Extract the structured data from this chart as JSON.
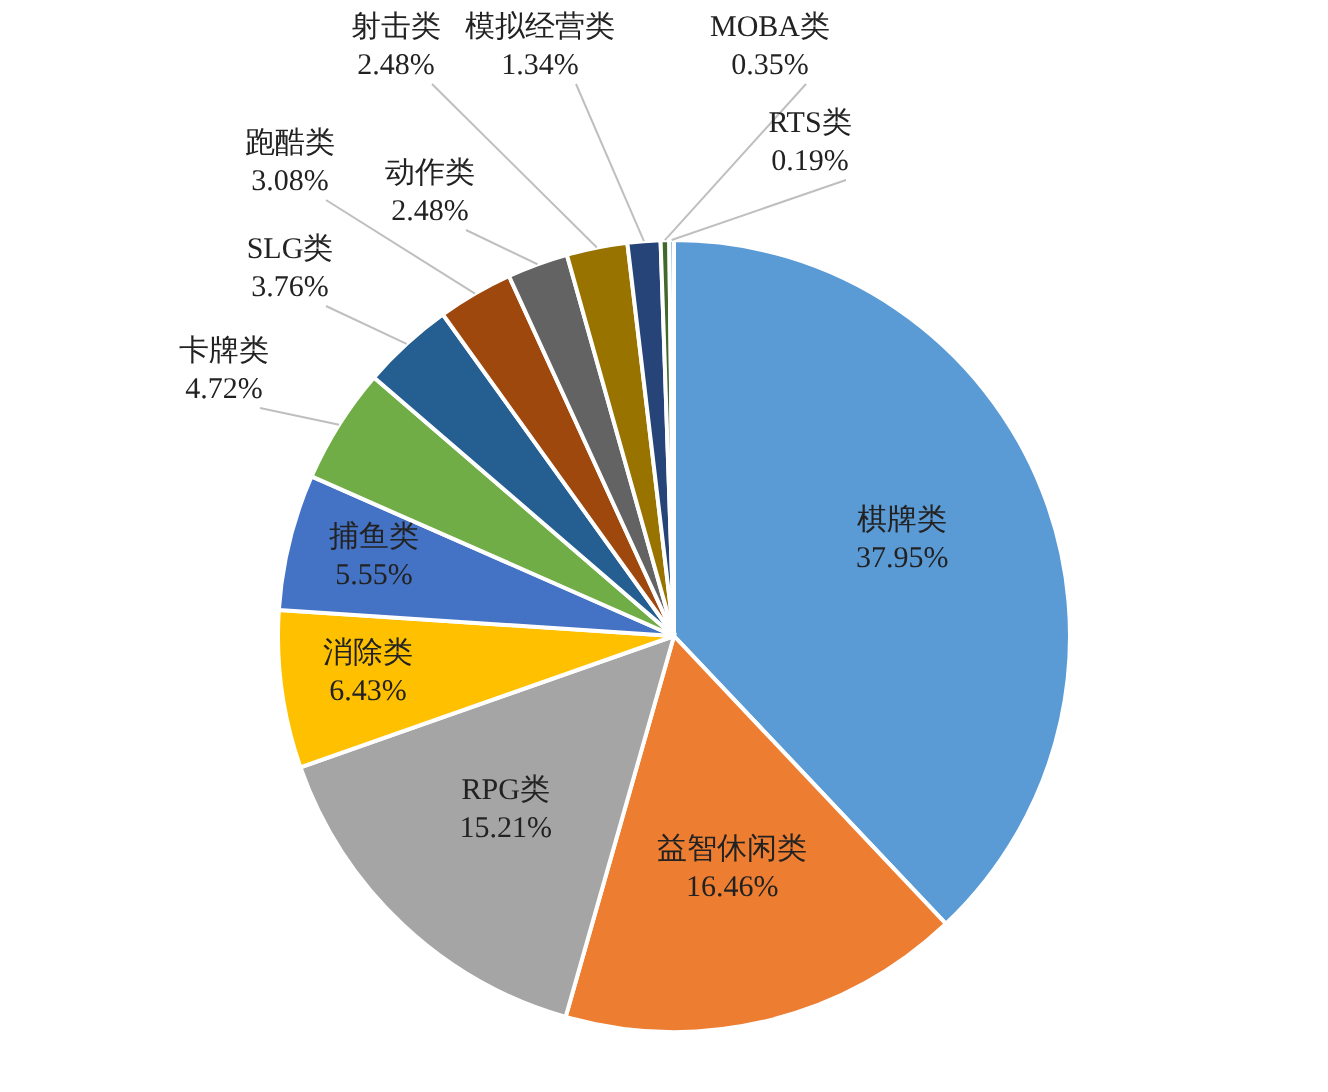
{
  "chart_data": {
    "type": "pie",
    "categories": [
      "棋牌类",
      "益智休闲类",
      "RPG类",
      "消除类",
      "捕鱼类",
      "卡牌类",
      "SLG类",
      "跑酷类",
      "动作类",
      "射击类",
      "模拟经营类",
      "MOBA类",
      "RTS类"
    ],
    "values": [
      37.95,
      16.46,
      15.21,
      6.43,
      5.55,
      4.72,
      3.76,
      3.08,
      2.48,
      2.48,
      1.34,
      0.35,
      0.19
    ],
    "colors": [
      "#5b9bd5",
      "#ed7d31",
      "#a5a5a5",
      "#ffc000",
      "#4472c4",
      "#70ad47",
      "#255e91",
      "#9e480e",
      "#636363",
      "#997300",
      "#264478",
      "#43682b",
      "#7cafdd"
    ],
    "value_labels": [
      "37.95%",
      "16.46%",
      "15.21%",
      "6.43%",
      "5.55%",
      "4.72%",
      "3.76%",
      "3.08%",
      "2.48%",
      "2.48%",
      "1.34%",
      "0.35%",
      "0.19%"
    ]
  }
}
